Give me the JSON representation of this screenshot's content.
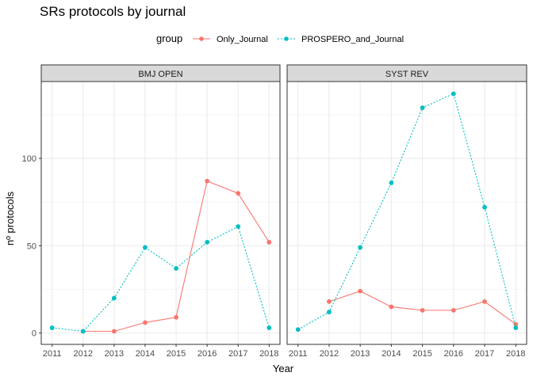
{
  "chart_data": {
    "type": "line",
    "title": "SRs protocols by journal",
    "xlabel": "Year",
    "ylabel": "nº protocols",
    "legend_title": "group",
    "legend_position": "top",
    "grid": true,
    "facets": [
      "BMJ OPEN",
      "SYST REV"
    ],
    "x_ticks": [
      2011,
      2012,
      2013,
      2014,
      2015,
      2016,
      2017,
      2018
    ],
    "y_ticks": [
      0,
      50,
      100
    ],
    "xlim": [
      2010.65,
      2018.35
    ],
    "ylim": [
      -6.5,
      144
    ],
    "series": [
      {
        "name": "Only_Journal",
        "color": "#F8766D",
        "line_style": "solid",
        "panels": {
          "BMJ OPEN": {
            "x": [
              2012,
              2013,
              2014,
              2015,
              2016,
              2017,
              2018
            ],
            "y": [
              1,
              1,
              6,
              9,
              87,
              80,
              52
            ]
          },
          "SYST REV": {
            "x": [
              2012,
              2013,
              2014,
              2015,
              2016,
              2017,
              2018
            ],
            "y": [
              18,
              24,
              15,
              13,
              13,
              18,
              5
            ]
          }
        }
      },
      {
        "name": "PROSPERO_and_Journal",
        "color": "#00BFC4",
        "line_style": "dotted",
        "panels": {
          "BMJ OPEN": {
            "x": [
              2011,
              2012,
              2013,
              2014,
              2015,
              2016,
              2017,
              2018
            ],
            "y": [
              3,
              1,
              20,
              49,
              37,
              52,
              61,
              3
            ]
          },
          "SYST REV": {
            "x": [
              2011,
              2012,
              2013,
              2014,
              2015,
              2016,
              2017,
              2018
            ],
            "y": [
              2,
              12,
              49,
              86,
              129,
              137,
              72,
              3
            ]
          }
        }
      }
    ]
  }
}
